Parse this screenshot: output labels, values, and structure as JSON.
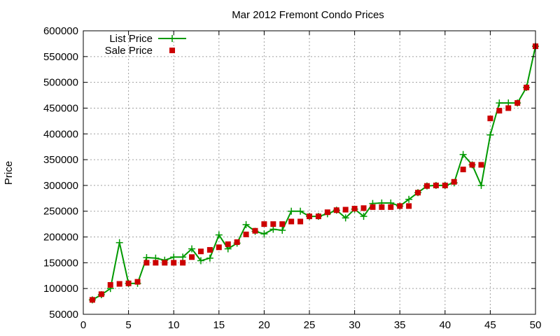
{
  "chart_data": {
    "type": "line",
    "title": "Mar 2012 Fremont Condo Prices",
    "xlabel": "",
    "ylabel": "Price",
    "xlim": [
      0,
      50
    ],
    "ylim": [
      50000,
      600000
    ],
    "xticks": [
      0,
      5,
      10,
      15,
      20,
      25,
      30,
      35,
      40,
      45,
      50
    ],
    "yticks": [
      50000,
      100000,
      150000,
      200000,
      250000,
      300000,
      350000,
      400000,
      450000,
      500000,
      550000,
      600000
    ],
    "grid": true,
    "legend": "top-left",
    "x": [
      1,
      2,
      3,
      4,
      5,
      6,
      7,
      8,
      9,
      10,
      11,
      12,
      13,
      14,
      15,
      16,
      17,
      18,
      19,
      20,
      21,
      22,
      23,
      24,
      25,
      26,
      27,
      28,
      29,
      30,
      31,
      32,
      33,
      34,
      35,
      36,
      37,
      38,
      39,
      40,
      41,
      42,
      43,
      44,
      45,
      46,
      47,
      48,
      49,
      50
    ],
    "series": [
      {
        "name": "List Price",
        "style": "linespoints",
        "color": "#009900",
        "values": [
          78000,
          88000,
          100000,
          189000,
          110000,
          110000,
          160000,
          159000,
          155000,
          161000,
          161000,
          177000,
          154000,
          159000,
          204000,
          177000,
          188000,
          224000,
          211000,
          206000,
          215000,
          213000,
          250000,
          250000,
          240000,
          240000,
          245000,
          252000,
          237000,
          254000,
          240000,
          265000,
          266000,
          266000,
          260000,
          273000,
          286000,
          299000,
          300000,
          300000,
          305000,
          360000,
          340000,
          300000,
          398000,
          460000,
          460000,
          460000,
          490000,
          570000
        ]
      },
      {
        "name": "Sale Price",
        "style": "points",
        "color": "#cc0000",
        "values": [
          78000,
          89000,
          107000,
          109000,
          110000,
          113000,
          150000,
          150000,
          150000,
          150000,
          150000,
          161000,
          172000,
          175000,
          180000,
          186000,
          190000,
          205000,
          212000,
          225000,
          225000,
          225000,
          230000,
          230000,
          240000,
          240000,
          248000,
          252000,
          253000,
          255000,
          256000,
          258000,
          258000,
          258000,
          260000,
          260000,
          286000,
          299000,
          300000,
          300000,
          307000,
          331000,
          340000,
          340000,
          430000,
          445000,
          450000,
          460000,
          490000,
          570000
        ]
      }
    ]
  }
}
